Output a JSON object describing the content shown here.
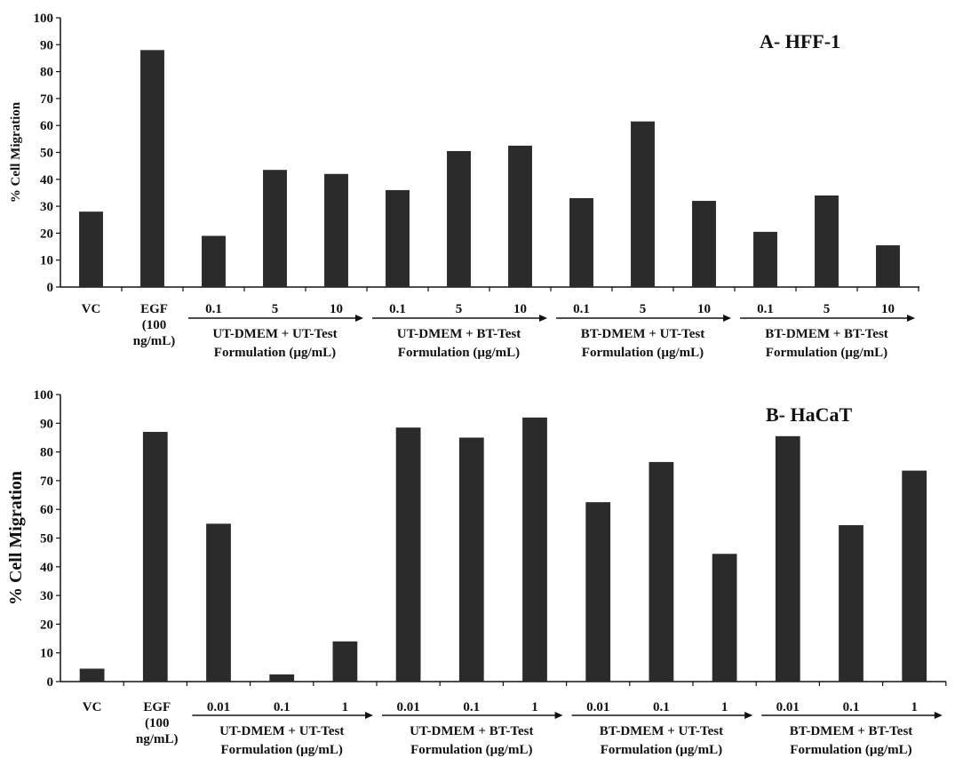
{
  "chart_data": [
    {
      "type": "bar",
      "title": "A- HFF-1",
      "ylabel": "% Cell Migration",
      "ylim": [
        0,
        100
      ],
      "yticks": [
        0,
        10,
        20,
        30,
        40,
        50,
        60,
        70,
        80,
        90,
        100
      ],
      "categories": [
        "VC",
        "EGF (100 ng/mL)",
        "0.1",
        "5",
        "10",
        "0.1",
        "5",
        "10",
        "0.1",
        "5",
        "10",
        "0.1",
        "5",
        "10"
      ],
      "values": [
        28,
        88,
        19,
        43.5,
        42,
        36,
        50.5,
        52.5,
        33,
        61.5,
        32,
        20.5,
        34,
        15.5
      ],
      "labels": {
        "vc": "VC",
        "egf": [
          "EGF",
          "(100",
          "ng/mL)"
        ],
        "groups": [
          {
            "doses": [
              "0.1",
              "5",
              "10"
            ],
            "line1": "UT-DMEM + UT-Test",
            "line2": "Formulation (µg/mL)"
          },
          {
            "doses": [
              "0.1",
              "5",
              "10"
            ],
            "line1": "UT-DMEM + BT-Test",
            "line2": "Formulation (µg/mL)"
          },
          {
            "doses": [
              "0.1",
              "5",
              "10"
            ],
            "line1": "BT-DMEM + UT-Test",
            "line2": "Formulation (µg/mL)"
          },
          {
            "doses": [
              "0.1",
              "5",
              "10"
            ],
            "line1": "BT-DMEM + BT-Test",
            "line2": "Formulation (µg/mL)"
          }
        ]
      },
      "grid": false,
      "legend": "none",
      "bar_color": "#2b2b2b"
    },
    {
      "type": "bar",
      "title": "B- HaCaT",
      "ylabel": "% Cell Migration",
      "ylim": [
        0,
        100
      ],
      "yticks": [
        0,
        10,
        20,
        30,
        40,
        50,
        60,
        70,
        80,
        90,
        100
      ],
      "categories": [
        "VC",
        "EGF (100 ng/mL)",
        "0.01",
        "0.1",
        "1",
        "0.01",
        "0.1",
        "1",
        "0.01",
        "0.1",
        "1",
        "0.01",
        "0.1",
        "1"
      ],
      "values": [
        4.5,
        87,
        55,
        2.5,
        14,
        88.5,
        85,
        92,
        62.5,
        76.5,
        44.5,
        85.5,
        54.5,
        73.5
      ],
      "labels": {
        "vc": "VC",
        "egf": [
          "EGF",
          "(100",
          "ng/mL)"
        ],
        "groups": [
          {
            "doses": [
              "0.01",
              "0.1",
              "1"
            ],
            "line1": "UT-DMEM + UT-Test",
            "line2": "Formulation (µg/mL)"
          },
          {
            "doses": [
              "0.01",
              "0.1",
              "1"
            ],
            "line1": "UT-DMEM + BT-Test",
            "line2": "Formulation (µg/mL)"
          },
          {
            "doses": [
              "0.01",
              "0.1",
              "1"
            ],
            "line1": "BT-DMEM + UT-Test",
            "line2": "Formulation (µg/mL)"
          },
          {
            "doses": [
              "0.01",
              "0.1",
              "1"
            ],
            "line1": "BT-DMEM + BT-Test",
            "line2": "Formulation (µg/mL)"
          }
        ]
      },
      "grid": false,
      "legend": "none",
      "bar_color": "#2b2b2b"
    }
  ]
}
